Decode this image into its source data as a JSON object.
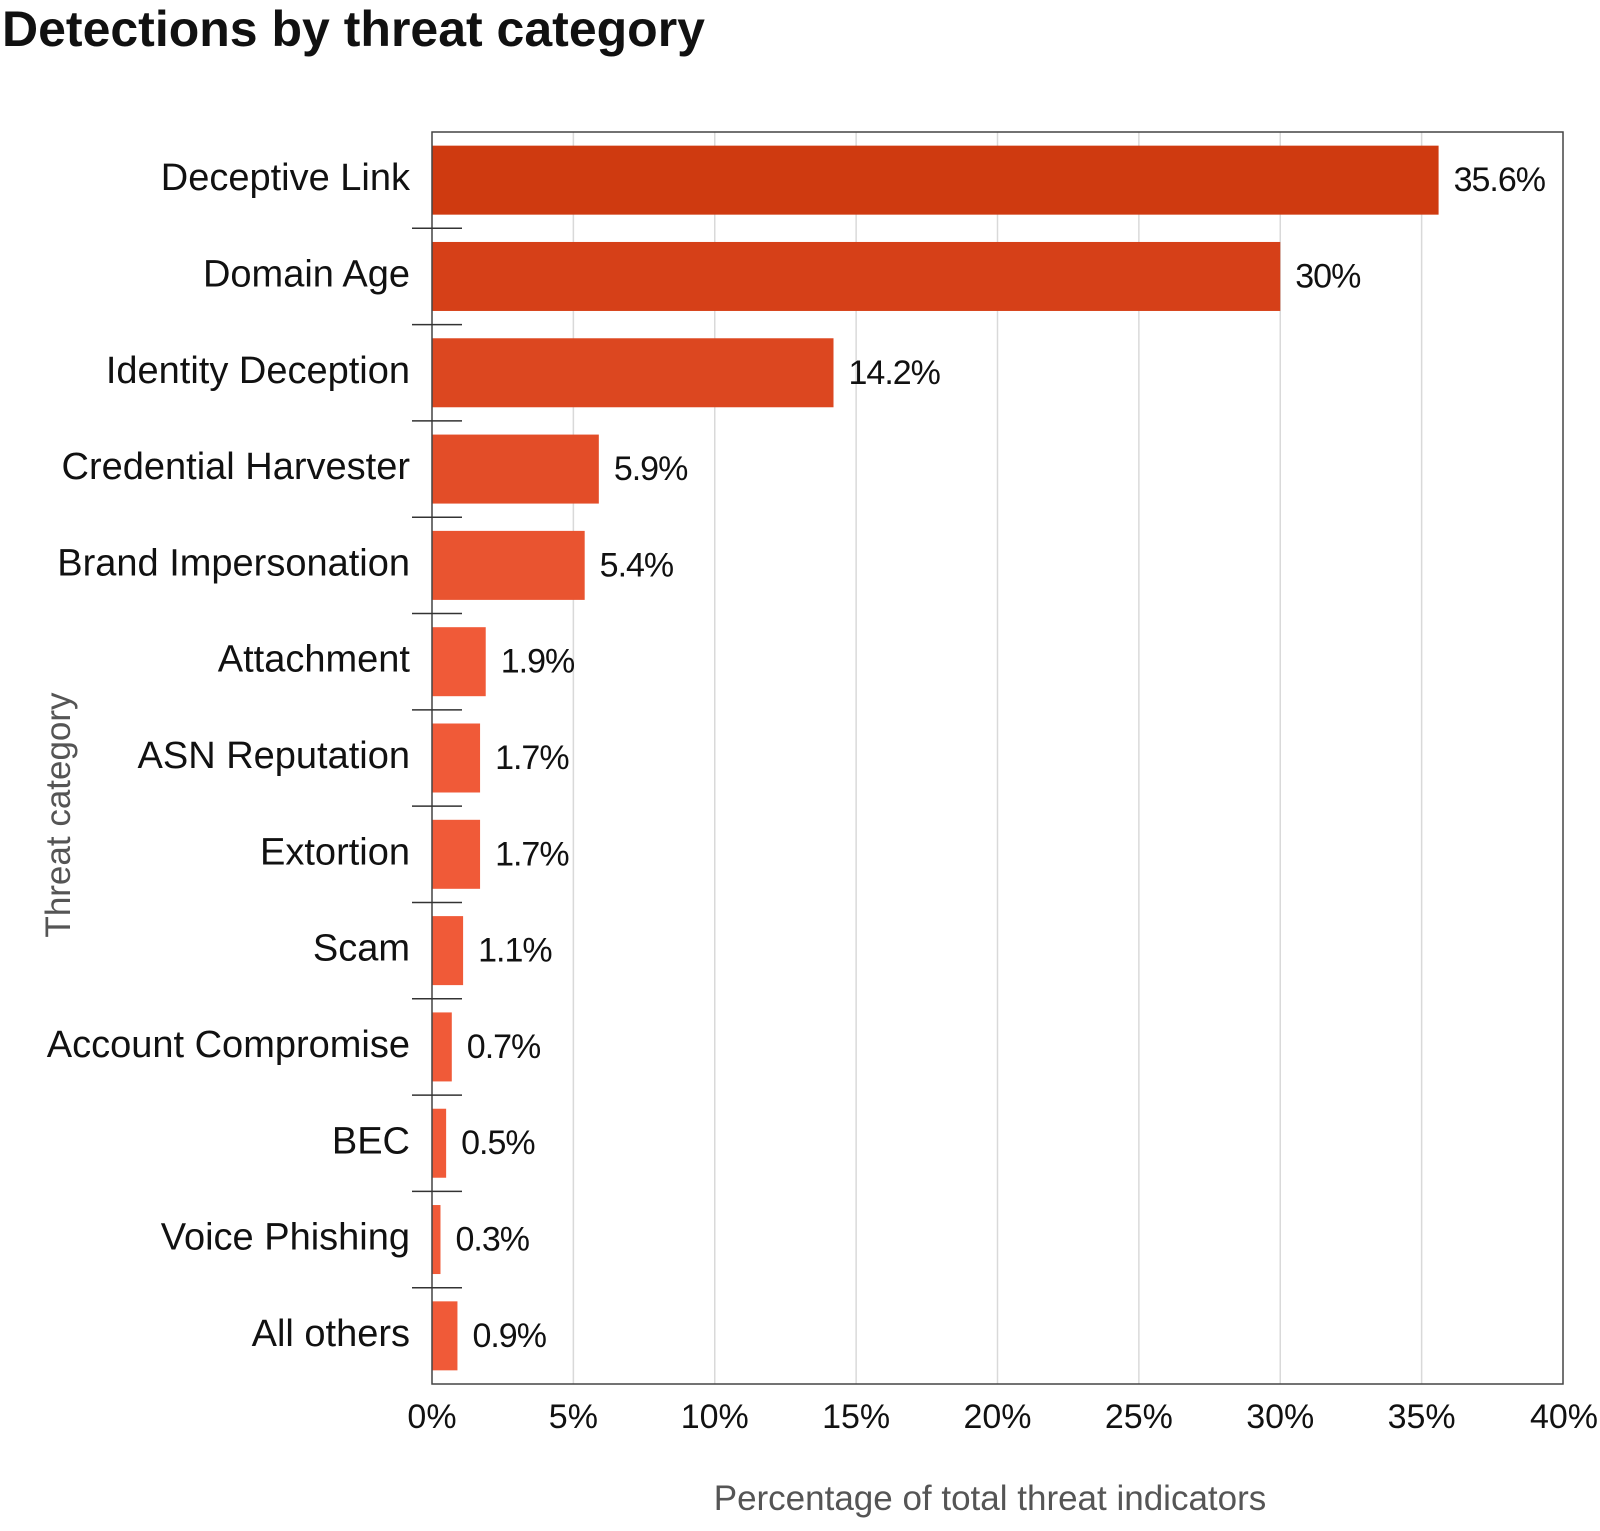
{
  "chart_data": {
    "type": "bar",
    "orientation": "horizontal",
    "title": "Detections by threat category",
    "xlabel": "Percentage of total threat indicators",
    "ylabel": "Threat category",
    "xlim": [
      0,
      40
    ],
    "xticks": [
      0,
      5,
      10,
      15,
      20,
      25,
      30,
      35,
      40
    ],
    "tick_suffix": "%",
    "grid": "vertical",
    "categories": [
      "Deceptive Link",
      "Domain Age",
      "Identity Deception",
      "Credential Harvester",
      "Brand Impersonation",
      "Attachment",
      "ASN Reputation",
      "Extortion",
      "Scam",
      "Account Compromise",
      "BEC",
      "Voice Phishing",
      "All others"
    ],
    "values": [
      35.6,
      30,
      14.2,
      5.9,
      5.4,
      1.9,
      1.7,
      1.7,
      1.1,
      0.7,
      0.5,
      0.3,
      0.9
    ],
    "value_labels": [
      "35.6%",
      "30%",
      "14.2%",
      "5.9%",
      "5.4%",
      "1.9%",
      "1.7%",
      "1.7%",
      "1.1%",
      "0.7%",
      "0.5%",
      "0.3%",
      "0.9%"
    ],
    "colors": {
      "bar_dark": "#cf3a10",
      "bar_light": "#f05a38",
      "grid": "#d9d9d9",
      "frame": "#444444"
    }
  }
}
